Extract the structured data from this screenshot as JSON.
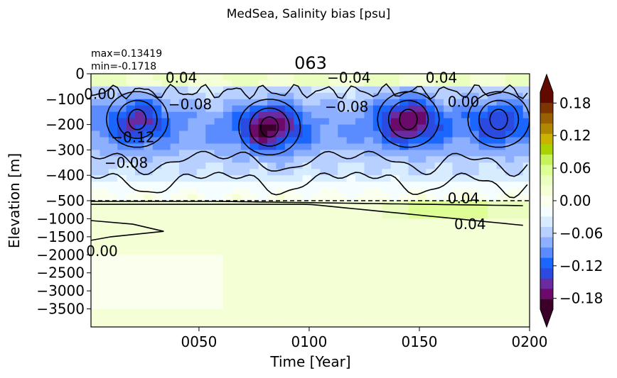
{
  "figure": {
    "suptitle": "MedSea, Salinity bias [psu]",
    "title": "063",
    "stats": {
      "max": "max=0.13419",
      "min": "min=-0.1718"
    }
  },
  "colors": {
    "background": "#ffffff",
    "contour": "#000000",
    "colormap": [
      "#3a002a",
      "#6b0a6b",
      "#6a2aa0",
      "#2a4ae0",
      "#1a66ff",
      "#5a8cff",
      "#8cb0ff",
      "#b8d0ff",
      "#d8ecff",
      "#f4fdff",
      "#fbffee",
      "#f4ffd6",
      "#eaffbf",
      "#deff95",
      "#c6f25a",
      "#aad200",
      "#c9b200",
      "#b08800",
      "#9a5f00",
      "#7f3500",
      "#620a00"
    ]
  },
  "chart_data": {
    "type": "heatmap",
    "title": "063",
    "xlabel": "Time [Year]",
    "ylabel": "Elevation [m]",
    "xlim": [
      1,
      200
    ],
    "x_ticks": [
      "0050",
      "0100",
      "0150",
      "0200"
    ],
    "x_tick_values": [
      50,
      100,
      150,
      200
    ],
    "y_ticks": [
      "0",
      "−100",
      "−200",
      "−300",
      "−400",
      "−500",
      "−1000",
      "−1500",
      "−2000",
      "−2500",
      "−3000",
      "−3500"
    ],
    "y_tick_values": [
      0,
      -100,
      -200,
      -300,
      -400,
      -500,
      -1000,
      -1500,
      -2000,
      -2500,
      -3000,
      -3500
    ],
    "y_axis": "piecewise: linear 0 to -500 m (upper panel), linear -500 to -4000 m (lower panel), separated by dashed line at -500 m",
    "ylim": [
      -4000,
      0
    ],
    "colorbar": {
      "ticks": [
        "0.18",
        "0.12",
        "0.06",
        "0.00",
        "−0.06",
        "−0.12",
        "−0.18"
      ],
      "tick_values": [
        0.18,
        0.12,
        0.06,
        0.0,
        -0.06,
        -0.12,
        -0.18
      ],
      "range": [
        -0.2,
        0.2
      ],
      "extend": "both"
    },
    "contour_labels": [
      {
        "text": "0.04"
      },
      {
        "text": "0.00"
      },
      {
        "text": "−0.08"
      },
      {
        "text": "−0.04"
      },
      {
        "text": "−0.08"
      },
      {
        "text": "0.04"
      },
      {
        "text": "0.00"
      },
      {
        "text": "−0.12"
      },
      {
        "text": "−0.08"
      },
      {
        "text": "0.04"
      },
      {
        "text": "0.04"
      },
      {
        "text": "0.00"
      }
    ],
    "values_description_by_depth": {
      "depth_m": [
        -25,
        -80,
        -150,
        -200,
        -260,
        -330,
        -400,
        -470,
        -750,
        -1250,
        -1750,
        -2250,
        -2750,
        -3250,
        -3750
      ],
      "bias_psu_typical": [
        0.03,
        -0.02,
        -0.1,
        -0.13,
        -0.11,
        -0.08,
        -0.05,
        -0.02,
        0.03,
        0.02,
        0.02,
        0.01,
        0.01,
        0.01,
        0.01
      ]
    },
    "core_minima": [
      {
        "year": 22,
        "depth_m": -180,
        "value": -0.14
      },
      {
        "year": 82,
        "depth_m": -210,
        "value": -0.1718
      },
      {
        "year": 145,
        "depth_m": -180,
        "value": -0.17
      },
      {
        "year": 186,
        "depth_m": -180,
        "value": -0.13
      }
    ]
  }
}
